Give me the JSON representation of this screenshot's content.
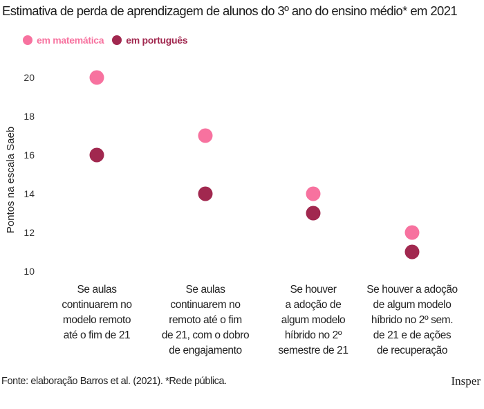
{
  "chart_data": {
    "type": "scatter",
    "title": "Estimativa de perda de aprendizagem de alunos do 3º ano do ensino médio* em 2021",
    "ylabel": "Pontos na escala Saeb",
    "xlabel": "",
    "ylim": [
      10,
      20
    ],
    "yticks": [
      10,
      12,
      14,
      16,
      18,
      20
    ],
    "grid": false,
    "legend_placement": "top-left",
    "categories": [
      [
        "Se aulas",
        "continuarem no",
        "modelo remoto",
        "até o fim de 21"
      ],
      [
        "Se aulas",
        "continuarem no",
        "remoto até o fim",
        "de 21, com o dobro",
        "de engajamento"
      ],
      [
        "Se houver",
        "a adoção de",
        "algum modelo",
        "híbrido no 2º",
        "semestre de 21"
      ],
      [
        "Se houver a adoção",
        "de algum modelo",
        "híbrido no 2º sem.",
        "de 21 e de ações",
        "de recuperação"
      ]
    ],
    "series": [
      {
        "name": "em matemática",
        "color": "#f7729f",
        "values": [
          20,
          17,
          14,
          12
        ]
      },
      {
        "name": "em português",
        "color": "#a1284f",
        "values": [
          16,
          14,
          13,
          11
        ]
      }
    ]
  },
  "footer": {
    "source": "Fonte: elaboração Barros et al. (2021). *Rede pública.",
    "logo": "Insper"
  }
}
